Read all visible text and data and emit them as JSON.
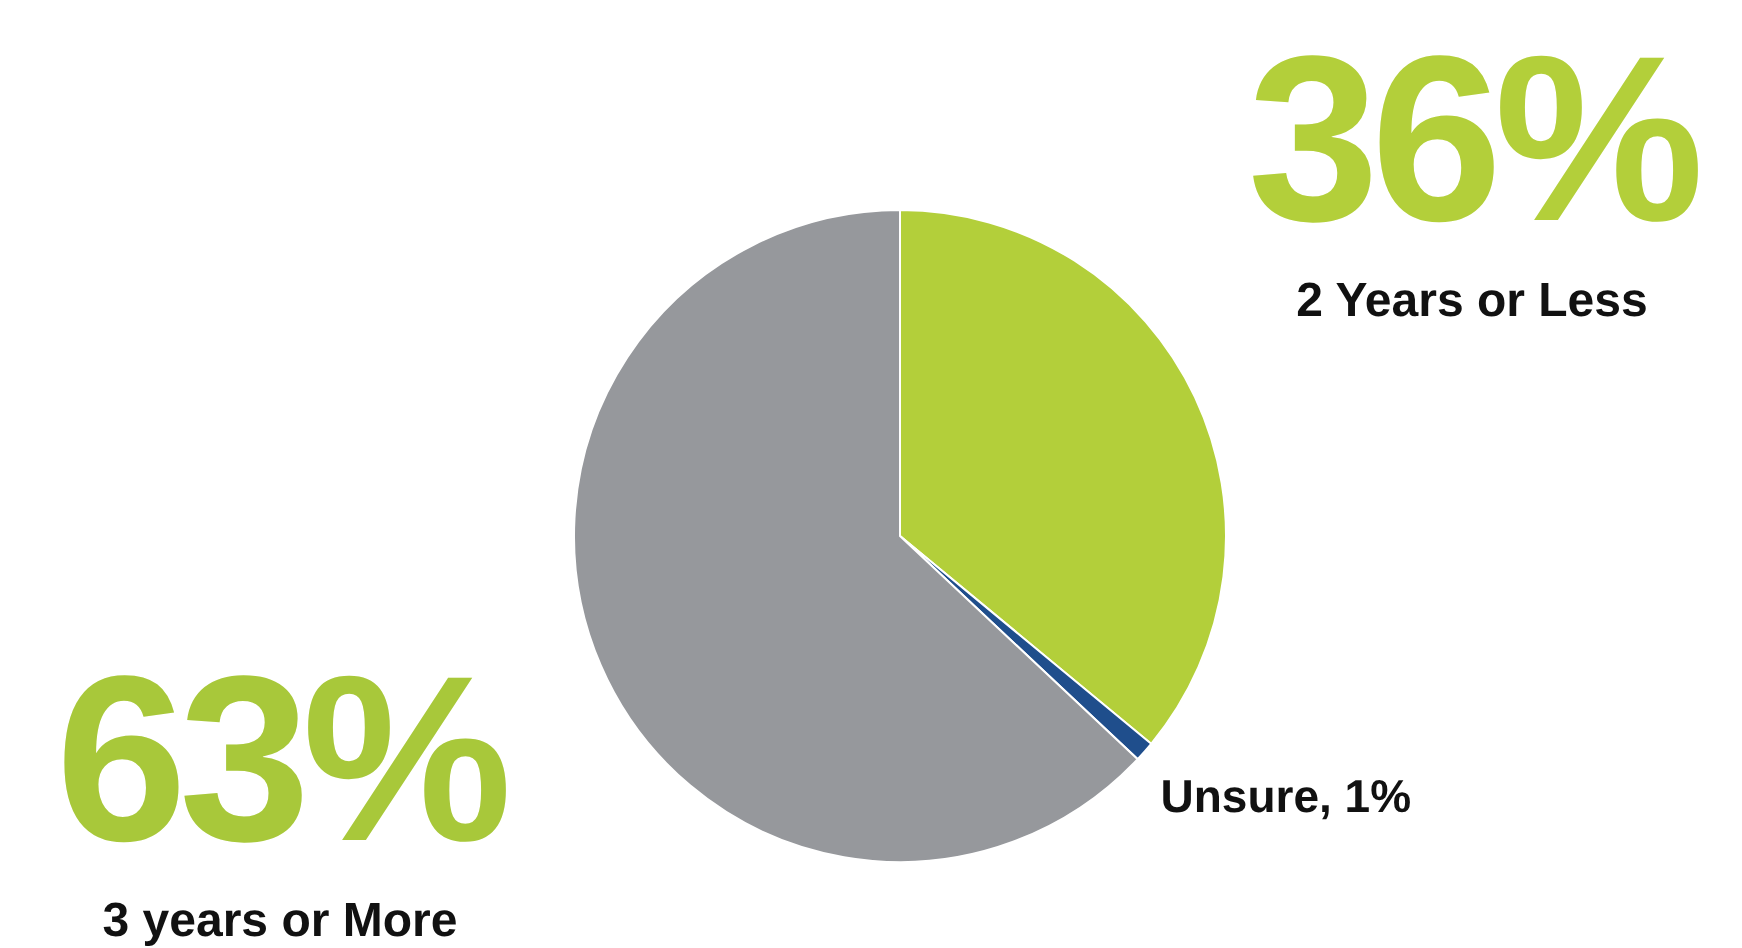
{
  "chart_data": {
    "type": "pie",
    "categories": [
      "2 Years or Less",
      "Unsure",
      "3 years or More"
    ],
    "values": [
      36,
      1,
      63
    ],
    "colors": [
      "#b3cf3a",
      "#1f4e8c",
      "#96989c"
    ],
    "value_labels": [
      "36%",
      "1%",
      "63%"
    ]
  }
}
